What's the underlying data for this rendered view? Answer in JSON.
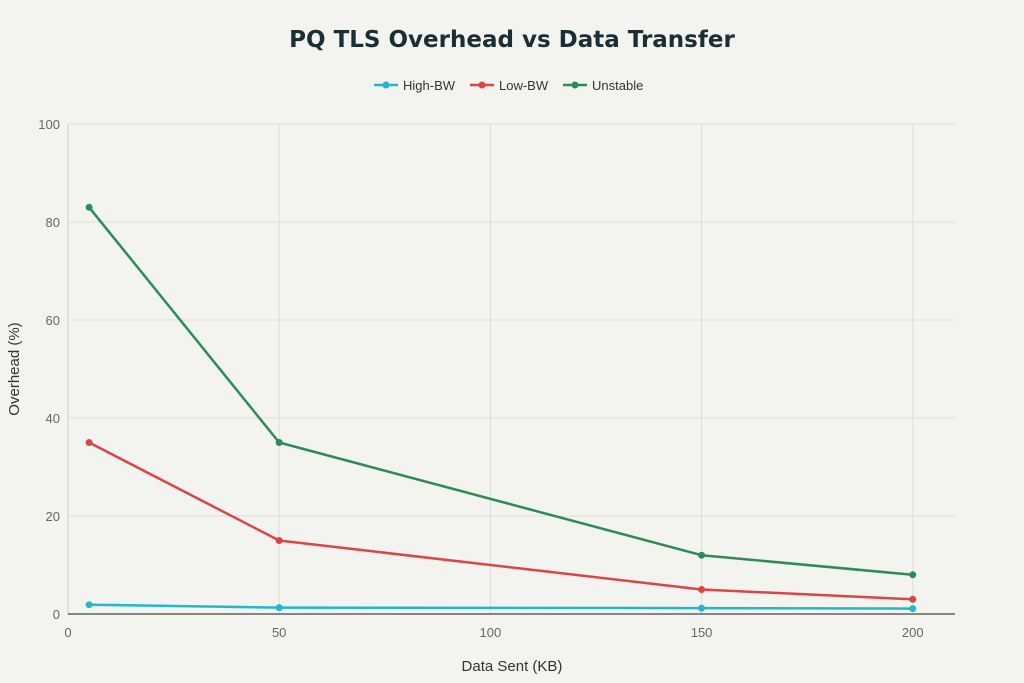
{
  "chart_data": {
    "type": "line",
    "title": "PQ TLS Overhead vs Data Transfer",
    "xlabel": "Data Sent (KB)",
    "ylabel": "Overhead (%)",
    "xlim": [
      0,
      210
    ],
    "ylim": [
      0,
      100
    ],
    "xticks": [
      0,
      50,
      100,
      150,
      200
    ],
    "yticks": [
      0,
      20,
      40,
      60,
      80,
      100
    ],
    "grid": true,
    "legend_position": "top-center",
    "x": [
      5,
      50,
      150,
      200
    ],
    "series": [
      {
        "name": "High-BW",
        "color": "#1fb8cd",
        "values": [
          1.9,
          1.3,
          1.2,
          1.1
        ]
      },
      {
        "name": "Low-BW",
        "color": "#db4545",
        "values": [
          35,
          15,
          5,
          3
        ]
      },
      {
        "name": "Unstable",
        "color": "#2e8b57",
        "values": [
          83,
          35,
          12,
          8
        ]
      }
    ]
  }
}
